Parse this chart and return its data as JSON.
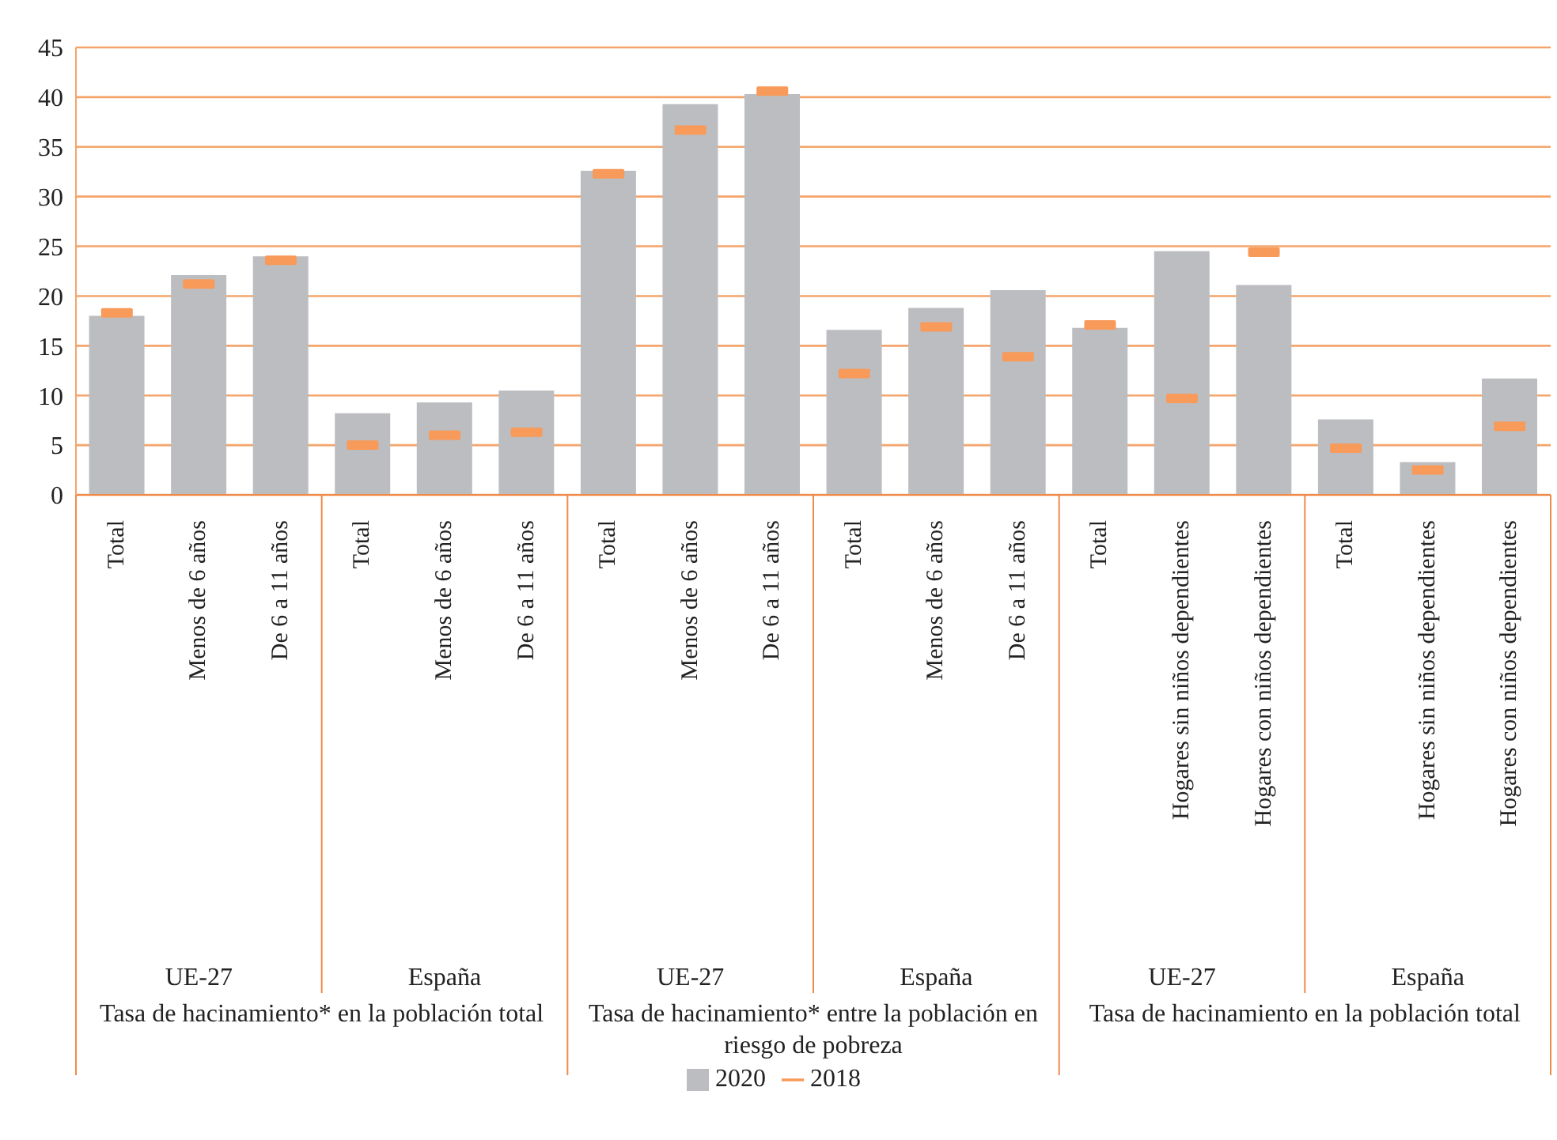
{
  "chart_data": {
    "type": "bar",
    "categories": [
      "Total",
      "Menos de 6 años",
      "De 6 a 11 años",
      "Total",
      "Menos de 6 años",
      "De 6 a 11 años",
      "Total",
      "Menos de 6 años",
      "De 6 a 11 años",
      "Total",
      "Menos de 6 años",
      "De 6 a 11 años",
      "Total",
      "Hogares sin niños dependientes",
      "Hogares con niños dependientes",
      "Total",
      "Hogares sin niños dependientes",
      "Hogares con niños dependientes"
    ],
    "series": [
      {
        "name": "2020",
        "color": "#bcbdc0",
        "values": [
          18.0,
          22.1,
          24.0,
          8.2,
          9.3,
          10.5,
          32.6,
          39.3,
          40.3,
          16.6,
          18.8,
          20.6,
          16.8,
          24.5,
          21.1,
          7.6,
          3.3,
          11.7
        ]
      },
      {
        "name": "2018",
        "type": "scatter",
        "color": "#f79a5a",
        "values": [
          18.3,
          21.2,
          23.6,
          5.0,
          6.0,
          6.3,
          32.3,
          36.7,
          40.6,
          12.2,
          16.9,
          13.9,
          17.1,
          9.7,
          24.4,
          4.7,
          2.5,
          6.9
        ]
      }
    ],
    "ylim": [
      0,
      45
    ],
    "yticks": [
      0,
      5,
      10,
      15,
      20,
      25,
      30,
      35,
      40,
      45
    ],
    "grid": "y",
    "legend": "bottom",
    "annotations": [
      "UE-27",
      "España",
      "UE-27",
      "España",
      "UE-27",
      "España",
      "Tasa de hacinamiento* en la población total",
      "Tasa de hacinamiento* entre la población en riesgo de pobreza",
      "Tasa de hacinamiento en la población total"
    ]
  }
}
